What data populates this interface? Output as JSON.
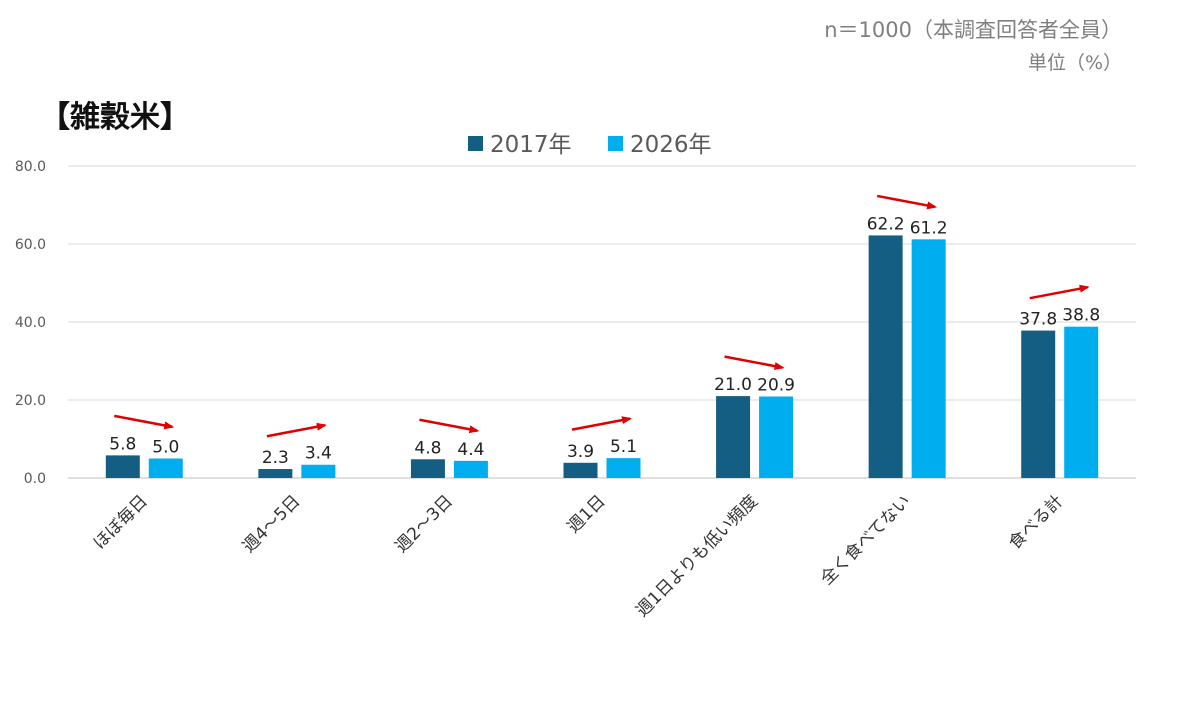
{
  "notes": {
    "sample": "n＝1000（本調査回答者全員）",
    "unit": "単位（%）"
  },
  "chart_data": {
    "type": "bar",
    "title": "【雑穀米】",
    "categories": [
      "ほぼ毎日",
      "週4～5日",
      "週2～3日",
      "週1日",
      "週1日よりも低い頻度",
      "全く食べてない",
      "食べる計"
    ],
    "series": [
      {
        "name": "2017年",
        "values": [
          5.8,
          2.3,
          4.8,
          3.9,
          21.0,
          62.2,
          37.8
        ],
        "color": "#135e82"
      },
      {
        "name": "2026年",
        "values": [
          5.0,
          3.4,
          4.4,
          5.1,
          20.9,
          61.2,
          38.8
        ],
        "color": "#00aeef"
      }
    ],
    "ylim": [
      0,
      80
    ],
    "yticks": [
      "0.0",
      "20.0",
      "40.0",
      "60.0",
      "80.0"
    ],
    "grid": true,
    "legend": "top-center",
    "annotations": "red arrows above each category pair indicating direction of change",
    "arrow_color": "#e00000"
  }
}
